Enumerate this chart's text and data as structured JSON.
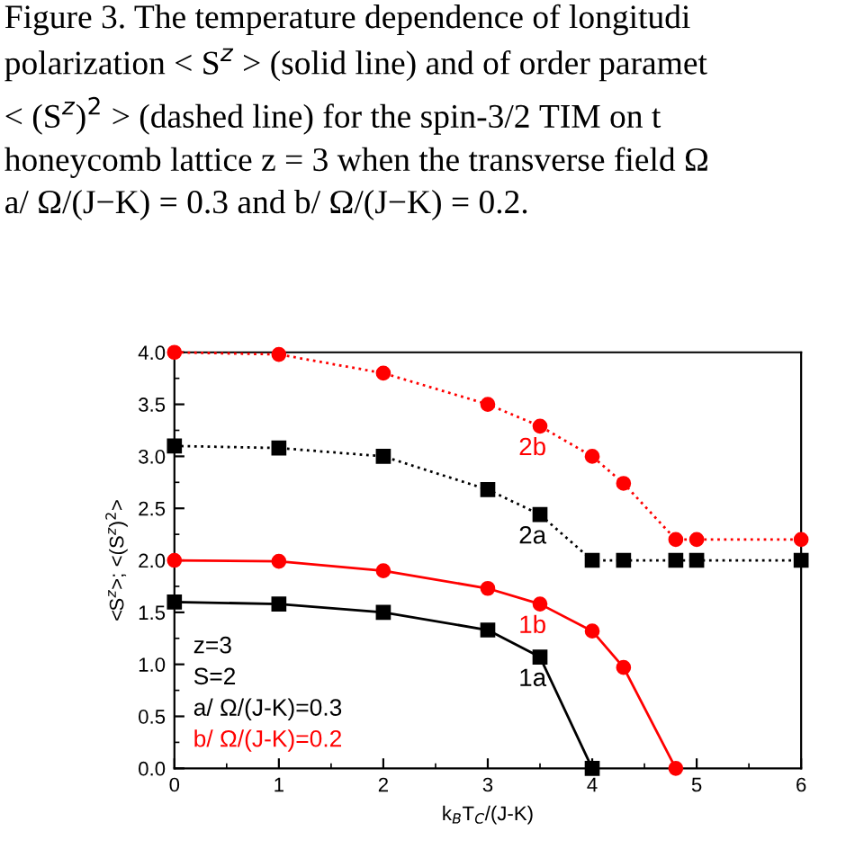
{
  "chart_data": {
    "type": "line",
    "title": "Figure 3. The temperature dependence of longitudi\npolarization < S$^{z}$ > (solid line) and of order paramet\n< (S$^{z}$)$^{2}$ > (dashed line) for the spin-3/2 TIM on t\nhoneycomb lattice z = 3 when the transverse field Ω\na/ Ω/(J−K) = 0.3 and b/ Ω/(J−K) = 0.2.",
    "xlabel": "k$_{B}$T$_{C}$/(J-K)",
    "ylabel": "<S$^{z}$>; <(S$^{z}$)$^{2}$>",
    "series": [
      {
        "name": "1a",
        "color": "#000000",
        "line_style": "solid",
        "marker": "square",
        "x": [
          0,
          1,
          2,
          3,
          3.5,
          4
        ],
        "values": [
          1.6,
          1.58,
          1.5,
          1.33,
          1.07,
          0
        ]
      },
      {
        "name": "1b",
        "color": "#ff0000",
        "line_style": "solid",
        "marker": "circle",
        "x": [
          0,
          1,
          2,
          3,
          3.5,
          4,
          4.3,
          4.8
        ],
        "values": [
          2.0,
          1.99,
          1.9,
          1.73,
          1.58,
          1.32,
          0.97,
          0
        ]
      },
      {
        "name": "2a",
        "color": "#000000",
        "line_style": "dotted",
        "marker": "square",
        "x": [
          0,
          1,
          2,
          3,
          3.5,
          4,
          4.3,
          4.8,
          5,
          6
        ],
        "values": [
          3.1,
          3.08,
          3.0,
          2.68,
          2.44,
          2.0,
          2.0,
          2.0,
          2.0,
          2.0
        ]
      },
      {
        "name": "2b",
        "color": "#ff0000",
        "line_style": "dotted",
        "marker": "circle",
        "x": [
          0,
          1,
          2,
          3,
          3.5,
          4,
          4.3,
          4.8,
          5,
          6
        ],
        "values": [
          4.0,
          3.98,
          3.8,
          3.5,
          3.29,
          3.0,
          2.74,
          2.2,
          2.2,
          2.2
        ]
      }
    ],
    "annotations": [
      "z=3",
      "S=2",
      "a/ Ω/(J-K)=0.3",
      "b/ Ω/(J-K)=0.2"
    ],
    "xlim": [
      0,
      6
    ],
    "xticks": [
      0,
      1,
      2,
      3,
      4,
      5,
      6
    ],
    "ylim": [
      0,
      4
    ],
    "yticks": [
      {
        "value": 0,
        "label": "0.0"
      },
      0.5,
      {
        "value": 1,
        "label": "1.0"
      },
      1.5,
      {
        "value": 2,
        "label": "2.0"
      },
      2.5,
      {
        "value": 3,
        "label": "3.0"
      },
      3.5,
      {
        "value": 4,
        "label": "4.0"
      }
    ],
    "grid": false,
    "legend": false
  }
}
